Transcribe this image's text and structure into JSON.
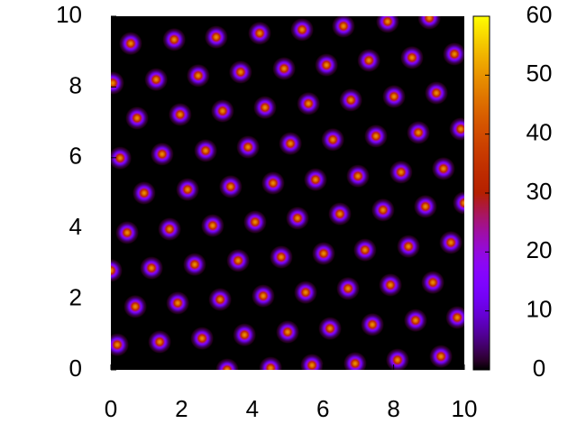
{
  "chart_data": {
    "type": "heatmap",
    "x": [
      0.56,
      1.79,
      2.98,
      4.21,
      5.41,
      6.58,
      7.83,
      9.01,
      0.05,
      1.28,
      2.47,
      3.67,
      4.9,
      6.1,
      7.3,
      8.52,
      9.72,
      0.74,
      1.96,
      3.16,
      4.36,
      5.59,
      6.79,
      8.01,
      9.21,
      0.26,
      1.45,
      2.68,
      3.88,
      5.08,
      6.28,
      7.5,
      8.7,
      9.9,
      0.94,
      2.17,
      3.39,
      4.59,
      5.79,
      6.99,
      8.21,
      9.41,
      0.46,
      1.66,
      2.88,
      4.08,
      5.28,
      6.48,
      7.7,
      8.9,
      10.0,
      0.0,
      1.15,
      2.37,
      3.6,
      4.82,
      6.02,
      7.19,
      8.42,
      9.62,
      0.69,
      1.89,
      3.09,
      4.31,
      5.51,
      6.71,
      7.91,
      9.11,
      0.18,
      1.38,
      2.58,
      3.78,
      5.0,
      6.2,
      7.4,
      8.62,
      9.8,
      3.29,
      4.52,
      5.69,
      6.91,
      8.11,
      9.34
    ],
    "y": [
      9.23,
      9.34,
      9.41,
      9.52,
      9.62,
      9.72,
      9.85,
      9.95,
      8.11,
      8.21,
      8.32,
      8.42,
      8.52,
      8.62,
      8.75,
      8.83,
      8.93,
      7.12,
      7.22,
      7.32,
      7.42,
      7.53,
      7.63,
      7.73,
      7.83,
      5.99,
      6.1,
      6.2,
      6.3,
      6.4,
      6.51,
      6.61,
      6.71,
      6.81,
      5.0,
      5.1,
      5.18,
      5.28,
      5.38,
      5.48,
      5.59,
      5.69,
      3.88,
      3.98,
      4.08,
      4.18,
      4.29,
      4.41,
      4.52,
      4.62,
      4.72,
      2.81,
      2.88,
      2.98,
      3.09,
      3.19,
      3.29,
      3.39,
      3.49,
      3.6,
      1.79,
      1.89,
      1.99,
      2.09,
      2.19,
      2.3,
      2.4,
      2.47,
      0.71,
      0.79,
      0.89,
      0.99,
      1.07,
      1.17,
      1.28,
      1.4,
      1.48,
      0.0,
      0.05,
      0.13,
      0.18,
      0.28,
      0.38
    ],
    "values": [
      50,
      50,
      50,
      50,
      50,
      50,
      50,
      50,
      50,
      50,
      50,
      50,
      50,
      50,
      50,
      50,
      50,
      50,
      50,
      50,
      50,
      50,
      50,
      50,
      50,
      50,
      50,
      50,
      50,
      50,
      50,
      50,
      50,
      50,
      50,
      50,
      50,
      50,
      50,
      50,
      50,
      50,
      50,
      50,
      50,
      50,
      50,
      50,
      50,
      50,
      50,
      50,
      50,
      50,
      50,
      50,
      50,
      50,
      50,
      50,
      50,
      50,
      50,
      50,
      50,
      50,
      50,
      50,
      50,
      50,
      50,
      50,
      50,
      50,
      50,
      50,
      50,
      50,
      50,
      50,
      50,
      50,
      50
    ],
    "xlim": [
      0,
      10
    ],
    "xticks": [
      0,
      2,
      4,
      6,
      8,
      10
    ],
    "ylim": [
      0,
      10
    ],
    "yticks": [
      0,
      2,
      4,
      6,
      8,
      10
    ],
    "zlim": [
      0,
      60
    ],
    "zticks": [
      0,
      10,
      20,
      30,
      40,
      50,
      60
    ]
  }
}
